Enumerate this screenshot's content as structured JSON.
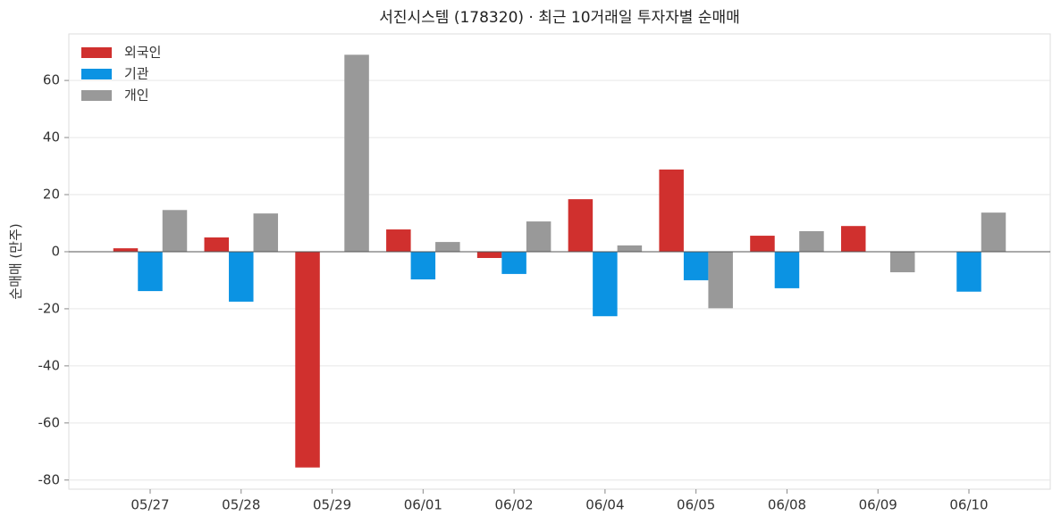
{
  "chart_data": {
    "type": "bar",
    "title": "서진시스템 (178320) · 최근 10거래일 투자자별 순매매",
    "y_label": "순매매 (만주)",
    "categories": [
      "05/27",
      "05/28",
      "05/29",
      "06/01",
      "06/02",
      "06/04",
      "06/05",
      "06/08",
      "06/09",
      "06/10"
    ],
    "series": [
      {
        "name": "외국인",
        "color": "#d0302e",
        "values": [
          1.2,
          5,
          -75.6,
          7.8,
          -2.2,
          18.4,
          28.8,
          5.6,
          9,
          0
        ]
      },
      {
        "name": "기관",
        "color": "#0b93e3",
        "values": [
          -13.8,
          -17.5,
          0,
          -9.7,
          -7.8,
          -22.6,
          -10,
          -12.8,
          0,
          -14
        ]
      },
      {
        "name": "개인",
        "color": "#999999",
        "values": [
          14.6,
          13.4,
          69,
          3.4,
          10.6,
          2.2,
          -19.8,
          7.2,
          -7.2,
          13.7
        ]
      }
    ],
    "ylim": [
      -83.2,
      76.3
    ],
    "yticks": [
      -80,
      -60,
      -40,
      -20,
      0,
      20,
      40,
      60
    ],
    "grid": true,
    "legend": "upper left"
  }
}
